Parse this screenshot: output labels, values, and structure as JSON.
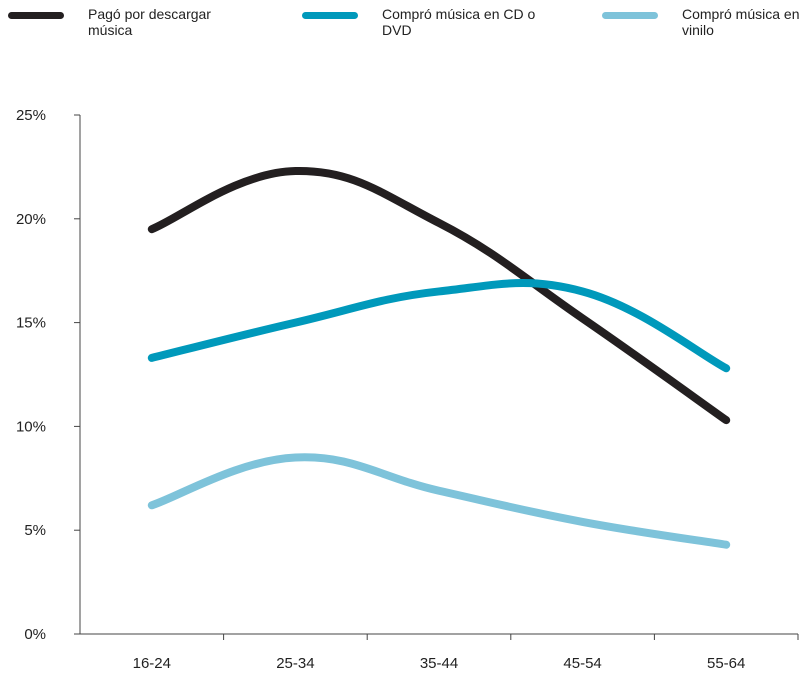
{
  "legend": [
    {
      "label": "Pagó por descargar música",
      "color": "#231f20"
    },
    {
      "label": "Compró música en CD o DVD",
      "color": "#0099bb"
    },
    {
      "label": "Compró música en vinilo",
      "color": "#7ec3da"
    }
  ],
  "chart_data": {
    "type": "line",
    "categories": [
      "16-24",
      "25-34",
      "35-44",
      "45-54",
      "55-64"
    ],
    "series": [
      {
        "name": "Pagó por descargar música",
        "color": "#231f20",
        "values": [
          19.5,
          22.3,
          19.8,
          15.2,
          10.3
        ]
      },
      {
        "name": "Compró música en CD o DVD",
        "color": "#0099bb",
        "values": [
          13.3,
          15.0,
          16.5,
          16.5,
          12.8
        ]
      },
      {
        "name": "Compró música en vinilo",
        "color": "#7ec3da",
        "values": [
          6.2,
          8.5,
          6.9,
          5.4,
          4.3
        ]
      }
    ],
    "ylim": [
      0,
      25
    ],
    "yticks": [
      0,
      5,
      10,
      15,
      20,
      25
    ],
    "ytick_labels": [
      "0%",
      "5%",
      "10%",
      "15%",
      "20%",
      "25%"
    ],
    "grid": false,
    "legend_position": "top"
  }
}
